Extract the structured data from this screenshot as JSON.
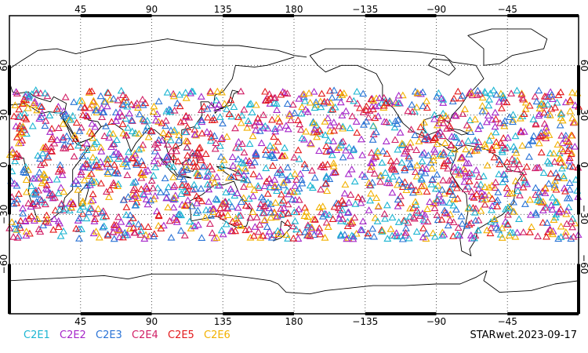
{
  "chart_data": {
    "type": "scatter",
    "projection": "equirectangular",
    "center_longitude": 180,
    "lon_range": [
      0,
      360
    ],
    "lat_range": [
      -90,
      90
    ],
    "grid": true,
    "grid_style": "dotted",
    "marker": "open-triangle",
    "lon_ticks": [
      {
        "value": 45,
        "label": "45"
      },
      {
        "value": 90,
        "label": "90"
      },
      {
        "value": 135,
        "label": "135"
      },
      {
        "value": 180,
        "label": "180"
      },
      {
        "value": 225,
        "label": "−135"
      },
      {
        "value": 270,
        "label": "−90"
      },
      {
        "value": 315,
        "label": "−45"
      }
    ],
    "lat_ticks": [
      {
        "value": 60,
        "label": "60"
      },
      {
        "value": 30,
        "label": "30"
      },
      {
        "value": 0,
        "label": "0"
      },
      {
        "value": -30,
        "label": "−30"
      },
      {
        "value": -60,
        "label": "−60"
      }
    ],
    "series": [
      {
        "name": "C2E1",
        "color": "#1cb5d2",
        "count": 320
      },
      {
        "name": "C2E2",
        "color": "#a626c9",
        "count": 320
      },
      {
        "name": "C2E3",
        "color": "#2a73d6",
        "count": 320
      },
      {
        "name": "C2E4",
        "color": "#d11f66",
        "count": 320
      },
      {
        "name": "C2E5",
        "color": "#e31a1c",
        "count": 320
      },
      {
        "name": "C2E6",
        "color": "#f2b100",
        "count": 320
      }
    ],
    "observation_lat_band": [
      -45,
      45
    ],
    "stamp": "STARwet.2023-09-17"
  }
}
